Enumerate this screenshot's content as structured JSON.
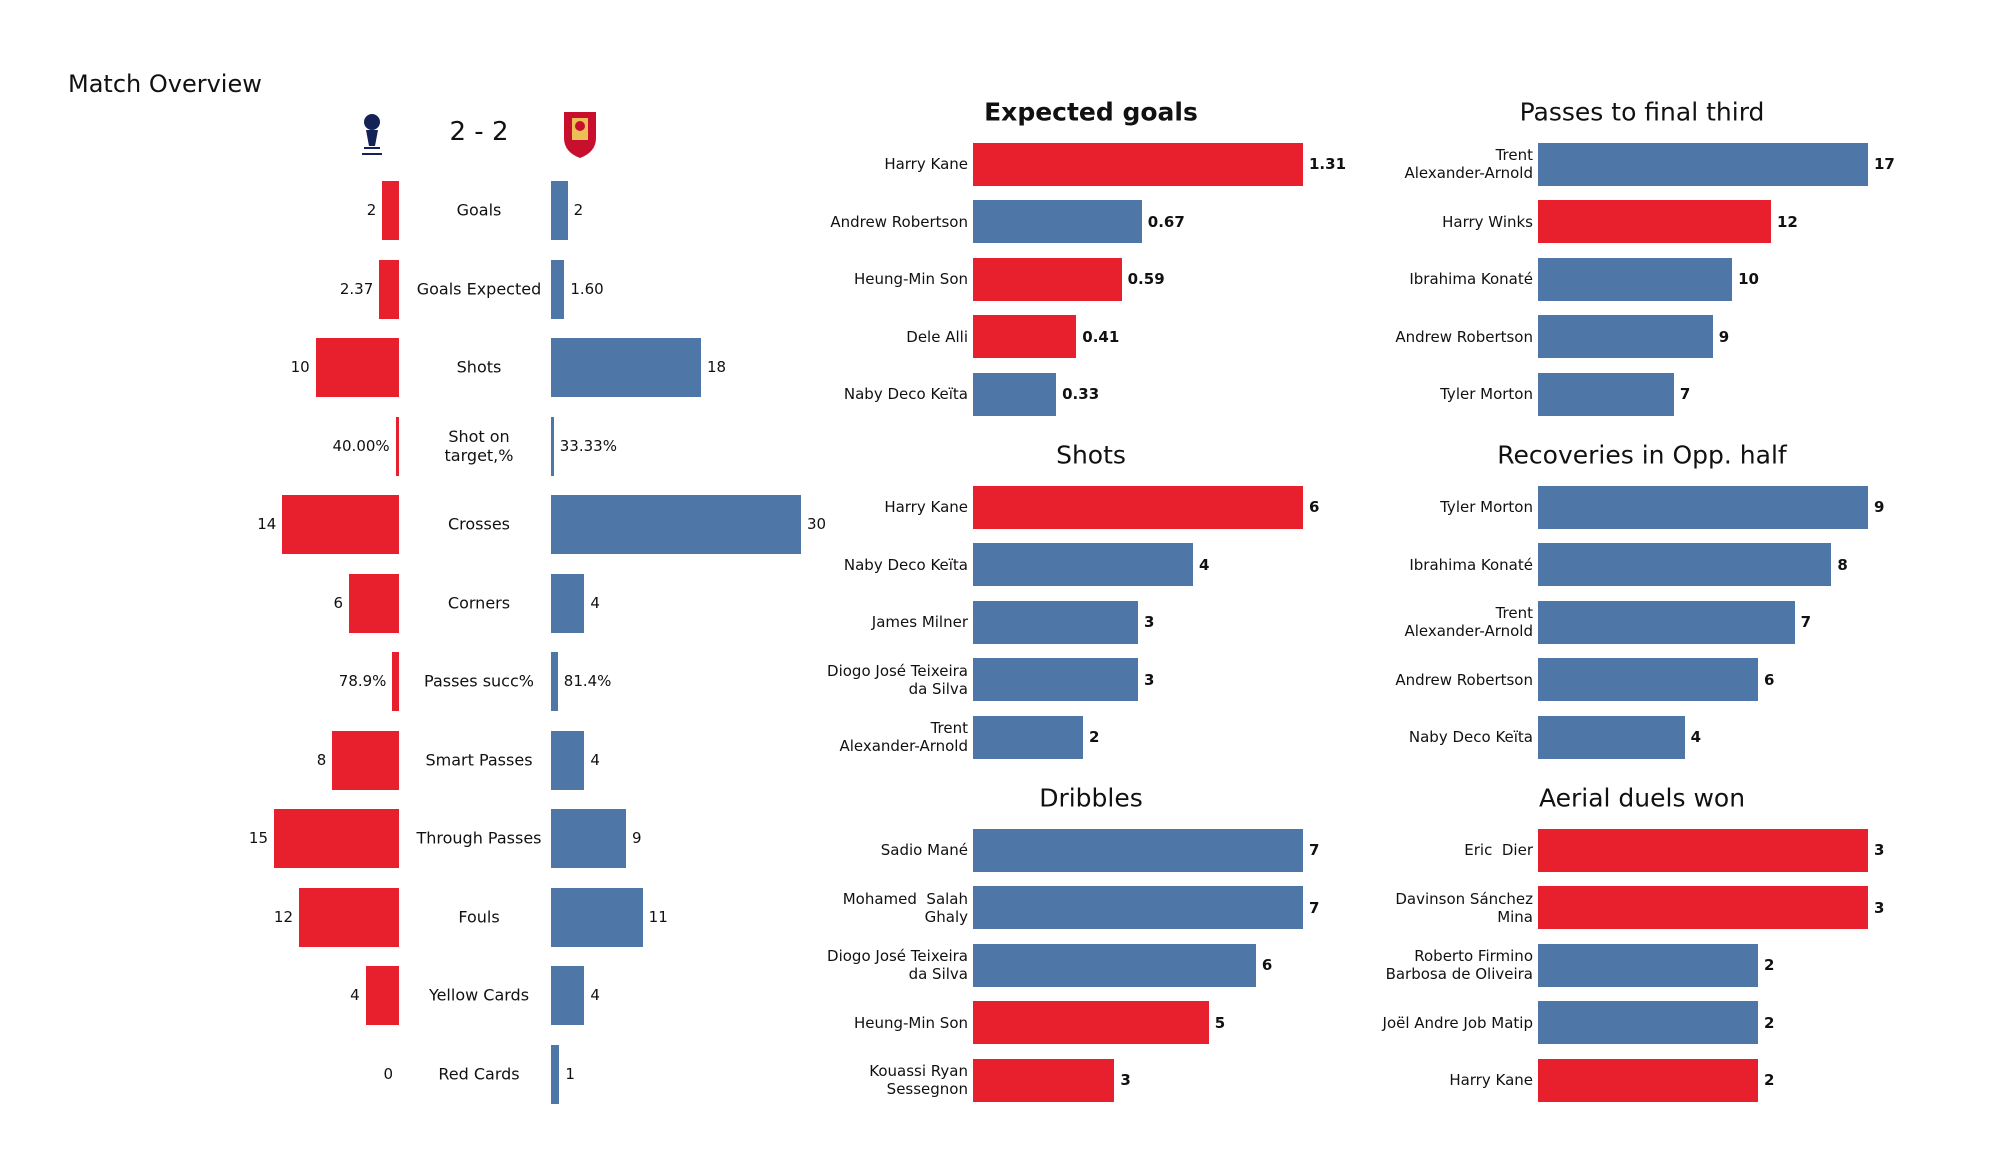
{
  "chart_data": [
    {
      "type": "butterfly",
      "title": "Match Overview",
      "score": "2 - 2",
      "categories": [
        "Goals",
        "Goals Expected",
        "Shots",
        "Shot on\ntarget,%",
        "Crosses",
        "Corners",
        "Passes succ%",
        "Smart Passes",
        "Through Passes",
        "Fouls",
        "Yellow Cards",
        "Red Cards"
      ],
      "series": [
        {
          "color": "#e8202e",
          "values": [
            2,
            2.37,
            10,
            0.4,
            14,
            6,
            0.789,
            8,
            15,
            12,
            4,
            0
          ],
          "value_labels": [
            "2",
            "2.37",
            "10",
            "40.00%",
            "14",
            "6",
            "78.9%",
            "8",
            "15",
            "12",
            "4",
            "0"
          ]
        },
        {
          "color": "#4e76a6",
          "values": [
            2,
            1.6,
            18,
            0.3333,
            30,
            4,
            0.814,
            4,
            9,
            11,
            4,
            1
          ],
          "value_labels": [
            "2",
            "1.60",
            "18",
            "33.33%",
            "30",
            "4",
            "81.4%",
            "4",
            "9",
            "11",
            "4",
            "1"
          ]
        }
      ]
    },
    {
      "type": "hbar",
      "title": "Expected goals",
      "title_bold": true,
      "categories": [
        "Harry Kane",
        "Andrew Robertson",
        "Heung-Min Son",
        "Dele Alli",
        "Naby Deco Keïta"
      ],
      "values": [
        1.31,
        0.67,
        0.59,
        0.41,
        0.33
      ],
      "colors": [
        "#e8202e",
        "#4e76a6",
        "#e8202e",
        "#e8202e",
        "#4e76a6"
      ]
    },
    {
      "type": "hbar",
      "title": "Passes to final third",
      "categories": [
        "Trent\nAlexander-Arnold",
        "Harry Winks",
        "Ibrahima Konaté",
        "Andrew Robertson",
        "Tyler Morton"
      ],
      "values": [
        17,
        12,
        10,
        9,
        7
      ],
      "colors": [
        "#4e76a6",
        "#e8202e",
        "#4e76a6",
        "#4e76a6",
        "#4e76a6"
      ]
    },
    {
      "type": "hbar",
      "title": "Shots",
      "categories": [
        "Harry Kane",
        "Naby Deco Keïta",
        "James Milner",
        "Diogo José Teixeira\nda Silva",
        "Trent\nAlexander-Arnold"
      ],
      "values": [
        6,
        4,
        3,
        3,
        2
      ],
      "colors": [
        "#e8202e",
        "#4e76a6",
        "#4e76a6",
        "#4e76a6",
        "#4e76a6"
      ]
    },
    {
      "type": "hbar",
      "title": "Recoveries in Opp. half",
      "categories": [
        "Tyler Morton",
        "Ibrahima Konaté",
        "Trent\nAlexander-Arnold",
        "Andrew Robertson",
        "Naby Deco Keïta"
      ],
      "values": [
        9,
        8,
        7,
        6,
        4
      ],
      "colors": [
        "#4e76a6",
        "#4e76a6",
        "#4e76a6",
        "#4e76a6",
        "#4e76a6"
      ]
    },
    {
      "type": "hbar",
      "title": "Dribbles",
      "categories": [
        "Sadio Mané",
        "Mohamed  Salah\nGhaly",
        "Diogo José Teixeira\nda Silva",
        "Heung-Min Son",
        "Kouassi Ryan\nSessegnon"
      ],
      "values": [
        7,
        7,
        6,
        5,
        3
      ],
      "colors": [
        "#4e76a6",
        "#4e76a6",
        "#4e76a6",
        "#e8202e",
        "#e8202e"
      ]
    },
    {
      "type": "hbar",
      "title": "Aerial duels won",
      "categories": [
        "Eric  Dier",
        "Davinson Sánchez\nMina",
        "Roberto Firmino\nBarbosa de Oliveira",
        "Joël Andre Job Matip",
        "Harry Kane"
      ],
      "values": [
        3,
        3,
        2,
        2,
        2
      ],
      "colors": [
        "#e8202e",
        "#e8202e",
        "#4e76a6",
        "#4e76a6",
        "#e8202e"
      ]
    }
  ]
}
